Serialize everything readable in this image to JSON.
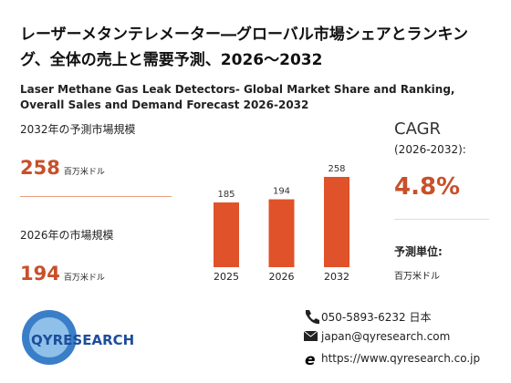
{
  "header": {
    "title": "レーザーメタンテレメーター―グローバル市場シェアとランキング、全体の売上と需要予測、2026～2032",
    "subtitle": "Laser Methane Gas Leak Detectors- Global Market Share and Ranking, Overall Sales and Demand Forecast 2026-2032"
  },
  "stats": [
    {
      "label": "2032年の予測市場規模",
      "value": "258",
      "unit": "百万米ドル"
    },
    {
      "label": "2026年の市場規模",
      "value": "194",
      "unit": "百万米ドル"
    }
  ],
  "cagr": {
    "label": "CAGR",
    "period": "(2026-2032):",
    "value": "4.8%",
    "unit_label": "予測単位:",
    "unit": "百万米ドル"
  },
  "chart_data": {
    "type": "bar",
    "categories": [
      "2025",
      "2026",
      "2032"
    ],
    "values": [
      185,
      194,
      258
    ],
    "color": "#e0522a"
  },
  "logo": {
    "text": "QYRESEARCH"
  },
  "contact": {
    "phone": "050-5893-6232 日本",
    "email": "japan@qyresearch.com",
    "web": "https://www.qyresearch.co.jp"
  }
}
